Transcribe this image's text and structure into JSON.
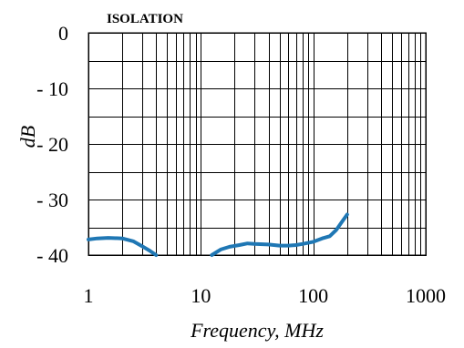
{
  "chart_data": {
    "type": "line",
    "title": "ISOLATION",
    "xlabel": "Frequency, MHz",
    "ylabel": "dB",
    "x_scale": "log",
    "xlim": [
      1,
      1000
    ],
    "ylim": [
      0,
      40
    ],
    "y_inverted": true,
    "grid": true,
    "x_ticks": [
      1,
      10,
      100,
      1000
    ],
    "x_tick_labels": [
      "1",
      "10",
      "100",
      "1000"
    ],
    "y_ticks": [
      0,
      10,
      20,
      30,
      40
    ],
    "y_tick_labels": [
      "0",
      "- 10",
      "- 20",
      "- 30",
      "- 40"
    ],
    "line_color": "#1f77b4",
    "series": [
      {
        "name": "",
        "x": [
          1,
          1.2,
          1.5,
          2,
          2.5,
          3,
          3.5,
          4,
          12.5,
          15,
          18,
          22,
          26,
          30,
          40,
          50,
          60,
          70,
          80,
          100,
          120,
          140,
          160,
          180,
          200
        ],
        "y": [
          37.2,
          37.0,
          36.9,
          37.0,
          37.5,
          38.4,
          39.2,
          40.0,
          40.0,
          39.0,
          38.5,
          38.2,
          37.9,
          38.0,
          38.1,
          38.3,
          38.3,
          38.2,
          38.0,
          37.6,
          37.0,
          36.6,
          35.5,
          34.0,
          32.7
        ]
      }
    ]
  }
}
